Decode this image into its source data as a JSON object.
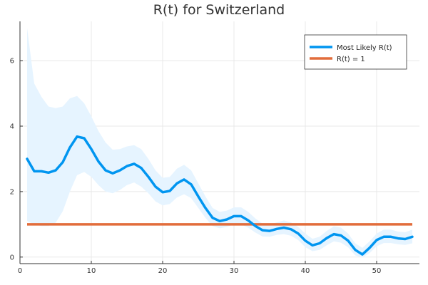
{
  "chart_data": {
    "type": "line",
    "title": "R(t) for Switzerland",
    "xlabel": "",
    "ylabel": "",
    "xlim": [
      0,
      56
    ],
    "ylim": [
      -0.2,
      7.2
    ],
    "xticks": [
      0,
      10,
      20,
      30,
      40,
      50
    ],
    "yticks": [
      0,
      2,
      4,
      6
    ],
    "grid": true,
    "legend_position": "top-right",
    "colors": {
      "most_likely": "#0095f0",
      "band": "#e6f4ff",
      "reference": "#e26d3c",
      "axis": "#333333",
      "grid": "#e8e8e8"
    },
    "x": [
      1,
      2,
      3,
      4,
      5,
      6,
      7,
      8,
      9,
      10,
      11,
      12,
      13,
      14,
      15,
      16,
      17,
      18,
      19,
      20,
      21,
      22,
      23,
      24,
      25,
      26,
      27,
      28,
      29,
      30,
      31,
      32,
      33,
      34,
      35,
      36,
      37,
      38,
      39,
      40,
      41,
      42,
      43,
      44,
      45,
      46,
      47,
      48,
      49,
      50,
      51,
      52,
      53,
      54,
      55
    ],
    "series": [
      {
        "name": "Most Likely R(t)",
        "values": [
          3.0,
          2.62,
          2.62,
          2.58,
          2.65,
          2.9,
          3.35,
          3.68,
          3.63,
          3.3,
          2.92,
          2.65,
          2.56,
          2.65,
          2.78,
          2.85,
          2.72,
          2.45,
          2.15,
          1.98,
          2.02,
          2.25,
          2.37,
          2.22,
          1.85,
          1.5,
          1.2,
          1.1,
          1.15,
          1.25,
          1.25,
          1.12,
          0.95,
          0.82,
          0.8,
          0.86,
          0.9,
          0.85,
          0.72,
          0.5,
          0.36,
          0.42,
          0.58,
          0.7,
          0.66,
          0.5,
          0.22,
          0.08,
          0.28,
          0.52,
          0.62,
          0.62,
          0.57,
          0.55,
          0.62
        ],
        "lower": [
          1.1,
          1.0,
          0.95,
          0.95,
          1.05,
          1.4,
          2.0,
          2.5,
          2.6,
          2.45,
          2.2,
          2.0,
          1.95,
          2.05,
          2.2,
          2.28,
          2.15,
          1.95,
          1.7,
          1.58,
          1.62,
          1.82,
          1.92,
          1.8,
          1.5,
          1.2,
          0.95,
          0.88,
          0.92,
          1.0,
          1.0,
          0.9,
          0.75,
          0.63,
          0.62,
          0.68,
          0.7,
          0.65,
          0.52,
          0.3,
          0.18,
          0.22,
          0.36,
          0.48,
          0.44,
          0.3,
          0.05,
          -0.02,
          0.12,
          0.33,
          0.43,
          0.43,
          0.39,
          0.37,
          0.42
        ],
        "upper": [
          7.0,
          5.3,
          4.9,
          4.6,
          4.55,
          4.6,
          4.85,
          4.92,
          4.7,
          4.3,
          3.85,
          3.5,
          3.28,
          3.3,
          3.38,
          3.42,
          3.3,
          3.0,
          2.65,
          2.42,
          2.45,
          2.7,
          2.82,
          2.65,
          2.25,
          1.85,
          1.5,
          1.38,
          1.42,
          1.52,
          1.52,
          1.38,
          1.18,
          1.02,
          1.0,
          1.06,
          1.12,
          1.06,
          0.92,
          0.72,
          0.56,
          0.62,
          0.8,
          0.94,
          0.9,
          0.72,
          0.42,
          0.28,
          0.48,
          0.72,
          0.84,
          0.84,
          0.78,
          0.76,
          0.84
        ]
      },
      {
        "name": "R(t) = 1",
        "values": [
          1,
          1,
          1,
          1,
          1,
          1,
          1,
          1,
          1,
          1,
          1,
          1,
          1,
          1,
          1,
          1,
          1,
          1,
          1,
          1,
          1,
          1,
          1,
          1,
          1,
          1,
          1,
          1,
          1,
          1,
          1,
          1,
          1,
          1,
          1,
          1,
          1,
          1,
          1,
          1,
          1,
          1,
          1,
          1,
          1,
          1,
          1,
          1,
          1,
          1,
          1,
          1,
          1,
          1,
          1
        ]
      }
    ]
  }
}
